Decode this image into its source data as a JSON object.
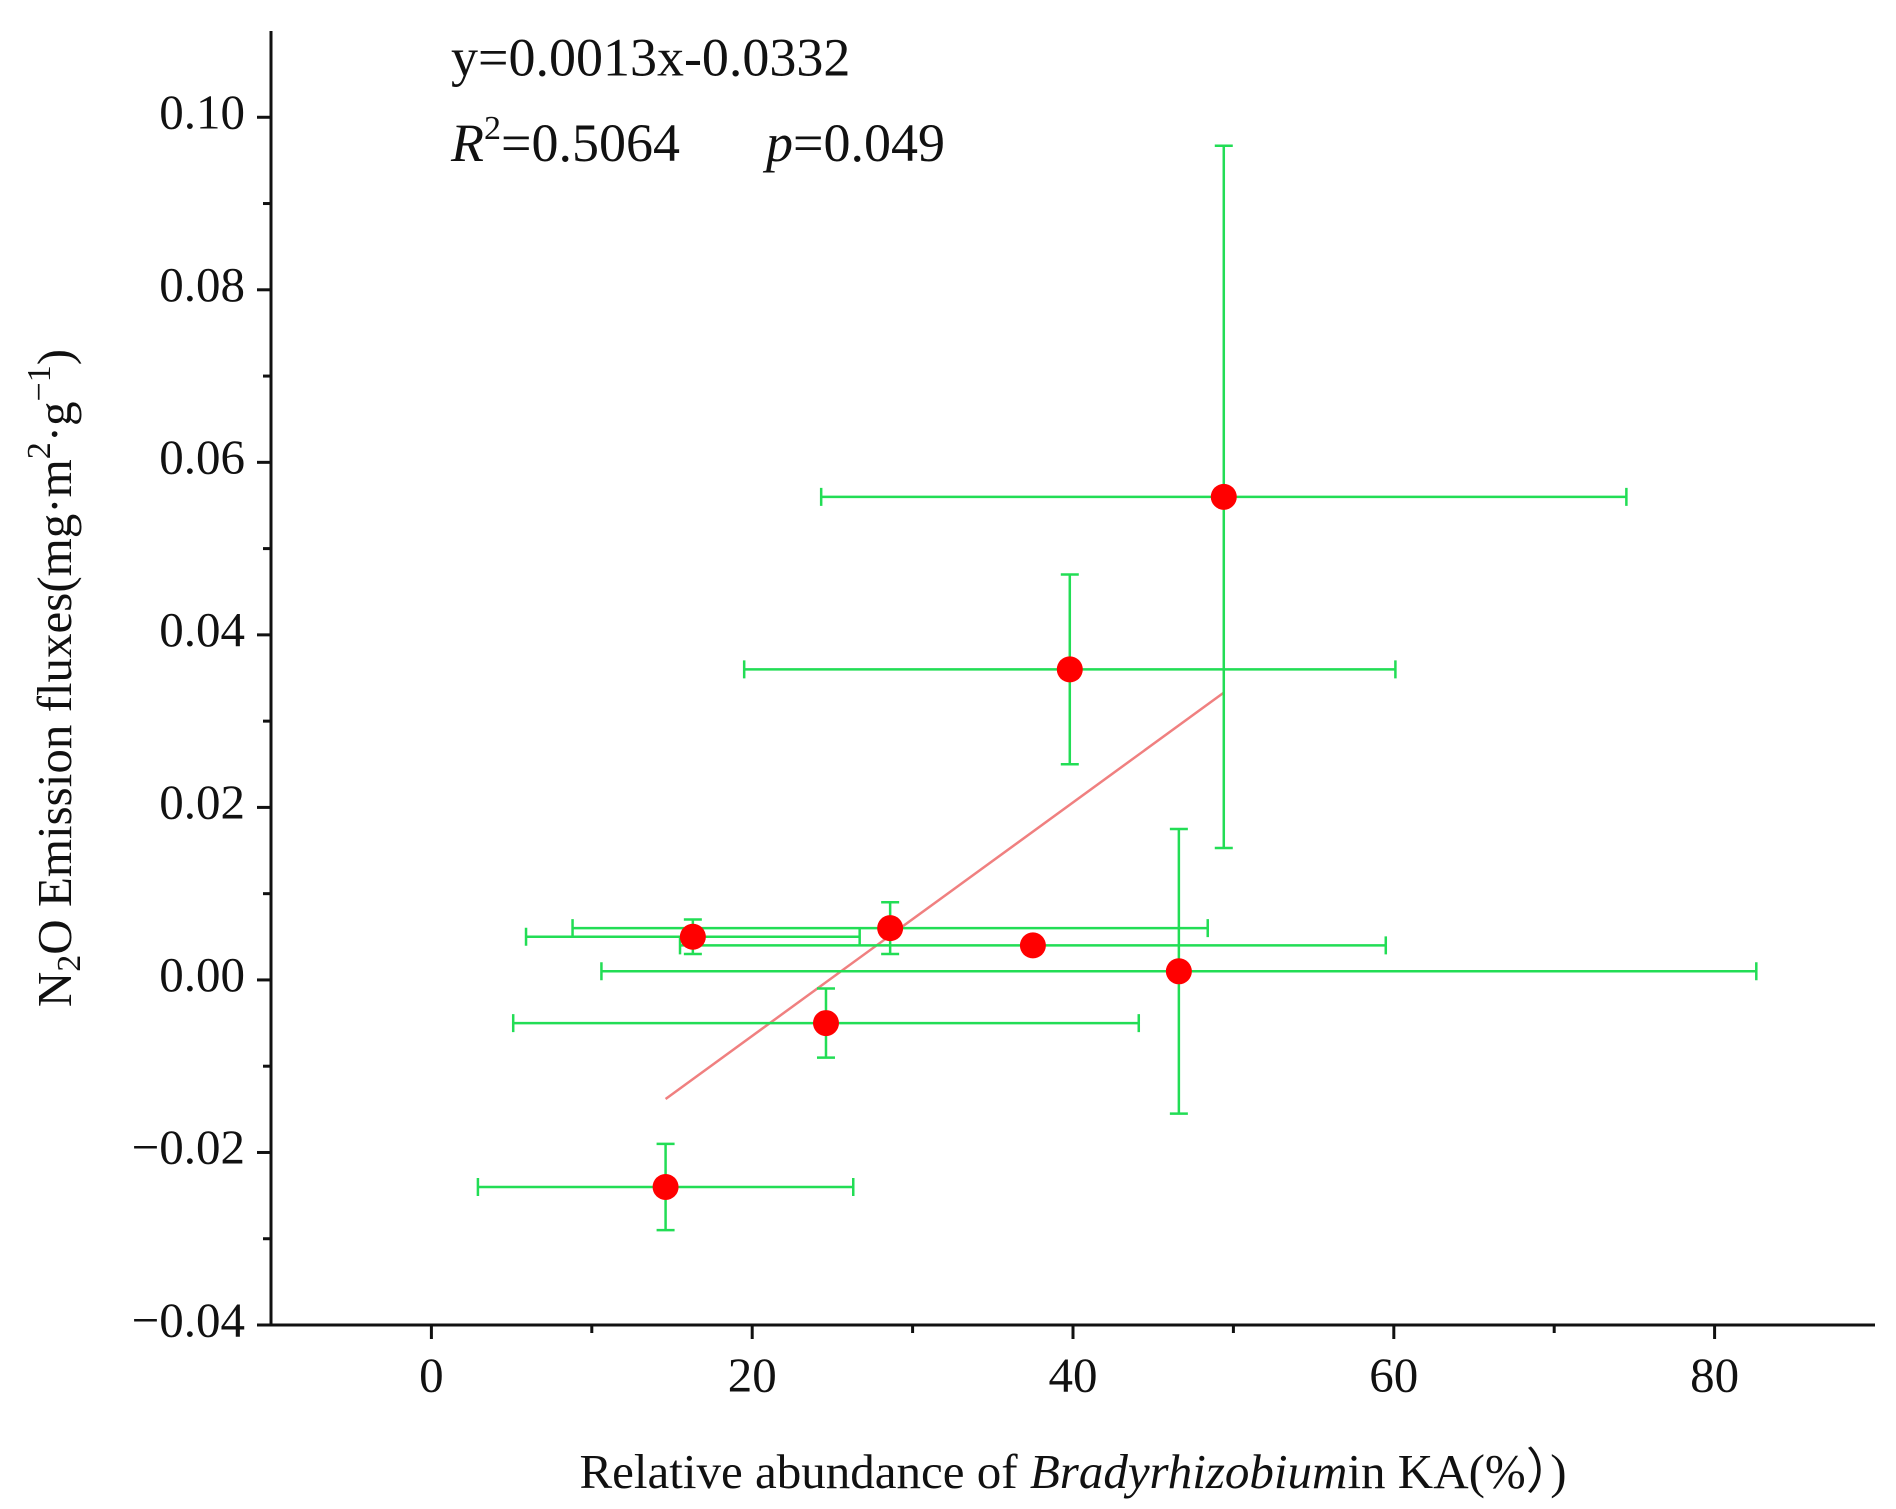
{
  "chart_data": {
    "type": "scatter",
    "x_label": [
      "Relative abundance of ",
      "Bradyrhizobium",
      "in KA(%）)"
    ],
    "y_label": [
      "N",
      "2",
      "O Emission fluxes(mg·m",
      "2",
      "·g",
      "−1",
      ")"
    ],
    "annotations": {
      "equation": "y=0.0013x-0.0332",
      "r2": [
        "R",
        "2",
        "=0.5064"
      ],
      "p": [
        "p",
        "=0.049"
      ]
    },
    "series": [
      {
        "color": "#ff0000",
        "error_color": "#22dd55",
        "x": [
          14.6,
          16.3,
          24.6,
          28.6,
          37.5,
          39.8,
          46.6,
          49.4
        ],
        "values": [
          -0.024,
          0.005,
          -0.005,
          0.006,
          0.004,
          0.036,
          0.001,
          0.056
        ],
        "xerr": [
          11.7,
          10.4,
          19.5,
          19.8,
          22,
          20.3,
          36,
          25.1
        ],
        "yerr": [
          0.005,
          0.002,
          0.004,
          0.003,
          0.0005,
          0.011,
          0.0165,
          0.0407
        ]
      }
    ],
    "fit_line": {
      "color": "#f08080",
      "x": [
        14.6,
        49.4
      ],
      "y": [
        -0.0138,
        0.0333
      ]
    },
    "xlim": [
      -10,
      90
    ],
    "ylim": [
      -0.04,
      0.11
    ],
    "xticks": [
      0,
      20,
      40,
      60,
      80
    ],
    "xminor": [
      10,
      30,
      50,
      70
    ],
    "yticks": [
      {
        "value": -0.04,
        "label": "−0.04"
      },
      {
        "value": -0.02,
        "label": "−0.02"
      },
      {
        "value": 0,
        "label": "0.00"
      },
      0.02,
      0.04,
      0.06,
      0.08,
      {
        "value": 0.1,
        "label": "0.10"
      }
    ],
    "yminor": [
      -0.03,
      -0.01,
      0.01,
      0.03,
      0.05,
      0.07,
      0.09
    ]
  }
}
